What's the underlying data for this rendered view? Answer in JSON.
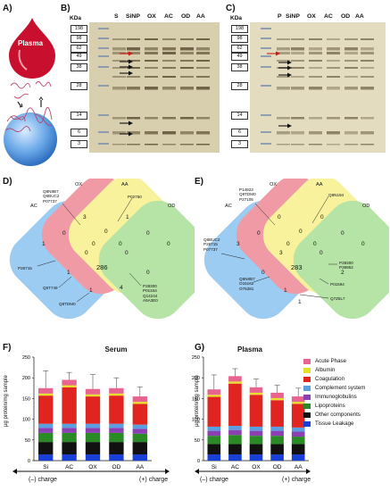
{
  "panels": {
    "A": "A)",
    "B": "B)",
    "C": "C)",
    "D": "D)",
    "E": "E)",
    "F": "F)",
    "G": "G)"
  },
  "plasma_drop_label": "Plasma",
  "kda_label": "KDa",
  "mw_markers": [
    "198",
    "98",
    "62",
    "49",
    "38",
    "28",
    "14",
    "6",
    "3"
  ],
  "gel_b_lanes": [
    "S",
    "SiNP",
    "OX",
    "AC",
    "OD",
    "AA"
  ],
  "gel_c_lanes": [
    "P",
    "SiNP",
    "OX",
    "AC",
    "OD",
    "AA"
  ],
  "venn_d": {
    "sets": [
      "AC",
      "OX",
      "AA",
      "OD"
    ],
    "counts": {
      "AC": "1",
      "OX": "3",
      "AA": "1",
      "OD": "0",
      "AC_OX": "0",
      "OX_AA": "0",
      "AA_OD": "0",
      "AC_AA": "0",
      "OX_OD": "0",
      "AC_OX_AA": "0",
      "OX_AA_OD": "0",
      "AC_OX_OD": "0",
      "AC_AA_OD": "1",
      "AC_OD": "1",
      "all": "286",
      "AC_OD_extra": "4"
    },
    "callouts": {
      "ox": "Q8N8B7\nQ6BUC2\nP07737",
      "aa": "P02750",
      "ac": "P26715",
      "bottom_right": "P28300\nP01344\nQ14244\nA5A3E0",
      "bottom_left1": "Q5T749",
      "bottom_left2": "Q8TDM0"
    }
  },
  "venn_e": {
    "sets": [
      "AC",
      "OX",
      "AA",
      "OD"
    ],
    "counts": {
      "AC": "3",
      "OX": "0",
      "AA": "0",
      "OD": "0",
      "AC_OX": "0",
      "OX_AA": "0",
      "AA_OD": "0",
      "AC_AA": "3",
      "OX_OD": "0",
      "AC_OX_AA": "0",
      "OX_AA_OD": "2",
      "AC_OX_OD": "0",
      "AC_AA_OD": "1",
      "AC_OD": "0",
      "all": "283",
      "bottom": "1"
    },
    "callouts": {
      "ox": "P14923\nQ9TDM0\nP27105",
      "aa": "Q8N194",
      "ac": "Q6BUC2\nP26715\nP07737",
      "right": "P28300\nP36952",
      "bottom_left": "Q8N8B7\nO15162\nO75381",
      "bottom_right1": "P01594",
      "bottom_right2": "Q7Z5L7"
    }
  },
  "colors": {
    "acute_phase": "#e8638d",
    "albumin": "#e5e02a",
    "coagulation": "#e02521",
    "complement": "#5b9fe0",
    "immunoglobulins": "#8c3fb3",
    "lipoproteins": "#2a8a25",
    "other": "#111111",
    "tissue": "#1a3fd6"
  },
  "chart_data": [
    {
      "type": "bar",
      "title": "Serum",
      "ylabel": "µg protein/mg sample",
      "categories": [
        "Si",
        "AC",
        "OX",
        "OD",
        "AA"
      ],
      "ylim": [
        0,
        250
      ],
      "yticks": [
        0,
        50,
        100,
        150,
        200,
        250
      ],
      "stacked": true,
      "series": [
        {
          "name": "Tissue Leakage",
          "values": [
            15,
            15,
            15,
            15,
            15
          ]
        },
        {
          "name": "Other components",
          "values": [
            30,
            30,
            30,
            30,
            30
          ]
        },
        {
          "name": "Lipoproteins",
          "values": [
            22,
            22,
            22,
            22,
            20
          ]
        },
        {
          "name": "Immunoglobulins",
          "values": [
            12,
            12,
            12,
            12,
            12
          ]
        },
        {
          "name": "Complement system",
          "values": [
            10,
            10,
            10,
            10,
            10
          ]
        },
        {
          "name": "Coagulation",
          "values": [
            68,
            88,
            66,
            68,
            50
          ]
        },
        {
          "name": "Albumin",
          "values": [
            5,
            5,
            5,
            5,
            5
          ]
        },
        {
          "name": "Acute Phase",
          "values": [
            13,
            13,
            13,
            13,
            13
          ]
        }
      ],
      "errors": [
        42,
        18,
        35,
        25,
        23
      ],
      "xcaption_left": "(–) charge",
      "xcaption_right": "(+) charge"
    },
    {
      "type": "bar",
      "title": "Plasma",
      "ylabel": "µg protein/mg sample",
      "categories": [
        "Si",
        "AC",
        "OX",
        "OD",
        "AA"
      ],
      "ylim": [
        0,
        250
      ],
      "yticks": [
        0,
        50,
        100,
        150,
        200,
        250
      ],
      "stacked": true,
      "series": [
        {
          "name": "Tissue Leakage",
          "values": [
            15,
            15,
            15,
            15,
            15
          ]
        },
        {
          "name": "Other components",
          "values": [
            25,
            25,
            25,
            25,
            25
          ]
        },
        {
          "name": "Lipoproteins",
          "values": [
            20,
            22,
            20,
            20,
            18
          ]
        },
        {
          "name": "Immunoglobulins",
          "values": [
            12,
            12,
            12,
            12,
            12
          ]
        },
        {
          "name": "Complement system",
          "values": [
            10,
            10,
            10,
            10,
            10
          ]
        },
        {
          "name": "Coagulation",
          "values": [
            72,
            102,
            77,
            64,
            57
          ]
        },
        {
          "name": "Albumin",
          "values": [
            5,
            5,
            5,
            5,
            5
          ]
        },
        {
          "name": "Acute Phase",
          "values": [
            13,
            13,
            13,
            13,
            13
          ]
        }
      ],
      "errors": [
        35,
        18,
        20,
        18,
        20
      ],
      "xcaption_left": "(–) charge",
      "xcaption_right": "(+) charge"
    }
  ],
  "legend": [
    "Acute Phase",
    "Albumin",
    "Coagulation",
    "Complement system",
    "Immunoglobulins",
    "Lipoproteins",
    "Other components",
    "Tissue Leakage"
  ]
}
